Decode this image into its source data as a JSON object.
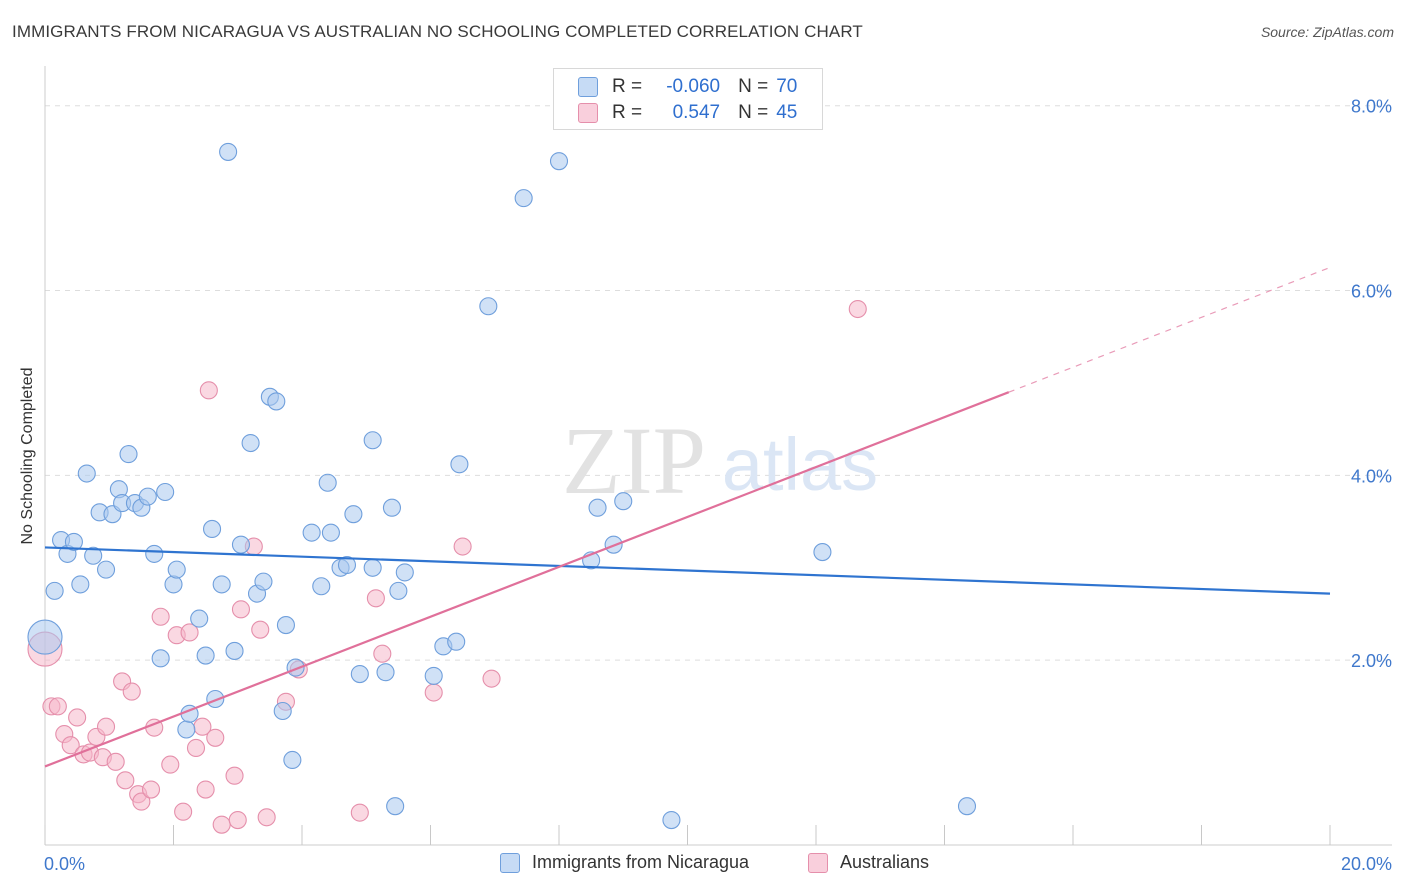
{
  "title": "IMMIGRANTS FROM NICARAGUA VS AUSTRALIAN NO SCHOOLING COMPLETED CORRELATION CHART",
  "source": "Source: ZipAtlas.com",
  "watermark": {
    "zip": "ZIP",
    "atlas": "atlas"
  },
  "stats": {
    "rows": [
      {
        "r_label": "R =",
        "r_value": "-0.060",
        "n_label": "N =",
        "n_value": "70"
      },
      {
        "r_label": "R =",
        "r_value": "0.547",
        "n_label": "N =",
        "n_value": "45"
      }
    ]
  },
  "colors": {
    "blue_fill": "#a9c8ef",
    "blue_stroke": "#6f9fdc",
    "blue_line": "#2f74d0",
    "pink_fill": "#f5b8ca",
    "pink_stroke": "#e58fab",
    "pink_line": "#e0709a",
    "tick_label": "#3f78cc",
    "grid": "#dddddd"
  },
  "chart_data": {
    "type": "scatter",
    "title": "IMMIGRANTS FROM NICARAGUA VS AUSTRALIAN NO SCHOOLING COMPLETED CORRELATION CHART",
    "xlabel": "",
    "ylabel": "No Schooling Completed",
    "xlim": [
      0,
      20
    ],
    "ylim": [
      0,
      8.3
    ],
    "x_tick_labels": [
      "0.0%",
      "20.0%"
    ],
    "y_ticks": [
      2,
      4,
      6,
      8
    ],
    "y_tick_labels": [
      "2.0%",
      "4.0%",
      "6.0%",
      "8.0%"
    ],
    "grid": true,
    "legend_position": "bottom",
    "series": [
      {
        "name": "Immigrants from Nicaragua",
        "color": "#a9c8ef",
        "points": [
          [
            0.0,
            2.25
          ],
          [
            0.15,
            2.75
          ],
          [
            0.25,
            3.3
          ],
          [
            0.35,
            3.15
          ],
          [
            0.45,
            3.28
          ],
          [
            0.55,
            2.82
          ],
          [
            0.65,
            4.02
          ],
          [
            0.75,
            3.13
          ],
          [
            0.85,
            3.6
          ],
          [
            0.95,
            2.98
          ],
          [
            1.05,
            3.58
          ],
          [
            1.15,
            3.85
          ],
          [
            1.2,
            3.7
          ],
          [
            1.3,
            4.23
          ],
          [
            1.4,
            3.7
          ],
          [
            1.5,
            3.65
          ],
          [
            1.6,
            3.77
          ],
          [
            1.7,
            3.15
          ],
          [
            1.8,
            2.02
          ],
          [
            1.87,
            3.82
          ],
          [
            2.0,
            2.82
          ],
          [
            2.05,
            2.98
          ],
          [
            2.2,
            1.25
          ],
          [
            2.25,
            1.42
          ],
          [
            2.4,
            2.45
          ],
          [
            2.5,
            2.05
          ],
          [
            2.6,
            3.42
          ],
          [
            2.65,
            1.58
          ],
          [
            2.75,
            2.82
          ],
          [
            2.85,
            7.5
          ],
          [
            2.95,
            2.1
          ],
          [
            3.05,
            3.25
          ],
          [
            3.2,
            4.35
          ],
          [
            3.3,
            2.72
          ],
          [
            3.4,
            2.85
          ],
          [
            3.5,
            4.85
          ],
          [
            3.6,
            4.8
          ],
          [
            3.7,
            1.45
          ],
          [
            3.75,
            2.38
          ],
          [
            3.85,
            0.92
          ],
          [
            3.9,
            1.92
          ],
          [
            4.15,
            3.38
          ],
          [
            4.3,
            2.8
          ],
          [
            4.4,
            3.92
          ],
          [
            4.45,
            3.38
          ],
          [
            4.6,
            3.0
          ],
          [
            4.7,
            3.03
          ],
          [
            4.8,
            3.58
          ],
          [
            4.9,
            1.85
          ],
          [
            5.1,
            3.0
          ],
          [
            5.1,
            4.38
          ],
          [
            5.3,
            1.87
          ],
          [
            5.4,
            3.65
          ],
          [
            5.45,
            0.42
          ],
          [
            5.5,
            2.75
          ],
          [
            5.6,
            2.95
          ],
          [
            6.05,
            1.83
          ],
          [
            6.2,
            2.15
          ],
          [
            6.4,
            2.2
          ],
          [
            6.45,
            4.12
          ],
          [
            6.9,
            5.83
          ],
          [
            7.45,
            7.0
          ],
          [
            8.0,
            7.4
          ],
          [
            8.5,
            3.08
          ],
          [
            8.6,
            3.65
          ],
          [
            8.85,
            3.25
          ],
          [
            9.0,
            3.72
          ],
          [
            9.75,
            0.27
          ],
          [
            12.1,
            3.17
          ],
          [
            14.35,
            0.42
          ]
        ]
      },
      {
        "name": "Australians",
        "color": "#f5b8ca",
        "points": [
          [
            0.0,
            2.12
          ],
          [
            0.1,
            1.5
          ],
          [
            0.2,
            1.5
          ],
          [
            0.3,
            1.2
          ],
          [
            0.4,
            1.08
          ],
          [
            0.5,
            1.38
          ],
          [
            0.6,
            0.98
          ],
          [
            0.7,
            1.0
          ],
          [
            0.8,
            1.17
          ],
          [
            0.9,
            0.95
          ],
          [
            0.95,
            1.28
          ],
          [
            1.1,
            0.9
          ],
          [
            1.2,
            1.77
          ],
          [
            1.25,
            0.7
          ],
          [
            1.35,
            1.66
          ],
          [
            1.45,
            0.55
          ],
          [
            1.5,
            0.47
          ],
          [
            1.65,
            0.6
          ],
          [
            1.7,
            1.27
          ],
          [
            1.8,
            2.47
          ],
          [
            1.95,
            0.87
          ],
          [
            2.05,
            2.27
          ],
          [
            2.15,
            0.36
          ],
          [
            2.25,
            2.3
          ],
          [
            2.35,
            1.05
          ],
          [
            2.45,
            1.28
          ],
          [
            2.5,
            0.6
          ],
          [
            2.55,
            4.92
          ],
          [
            2.65,
            1.16
          ],
          [
            2.75,
            0.22
          ],
          [
            2.95,
            0.75
          ],
          [
            3.0,
            0.27
          ],
          [
            3.05,
            2.55
          ],
          [
            3.25,
            3.23
          ],
          [
            3.35,
            2.33
          ],
          [
            3.45,
            0.3
          ],
          [
            3.75,
            1.55
          ],
          [
            3.95,
            1.9
          ],
          [
            4.9,
            0.35
          ],
          [
            5.15,
            2.67
          ],
          [
            5.25,
            2.07
          ],
          [
            6.05,
            1.65
          ],
          [
            6.5,
            3.23
          ],
          [
            6.95,
            1.8
          ],
          [
            12.65,
            5.8
          ]
        ]
      }
    ],
    "trendlines": [
      {
        "series": "Immigrants from Nicaragua",
        "from": [
          0,
          3.22
        ],
        "to": [
          20,
          2.72
        ]
      },
      {
        "series": "Australians",
        "from": [
          0,
          0.85
        ],
        "to": [
          15,
          4.9
        ],
        "dashed_to": [
          20,
          6.25
        ]
      }
    ]
  }
}
